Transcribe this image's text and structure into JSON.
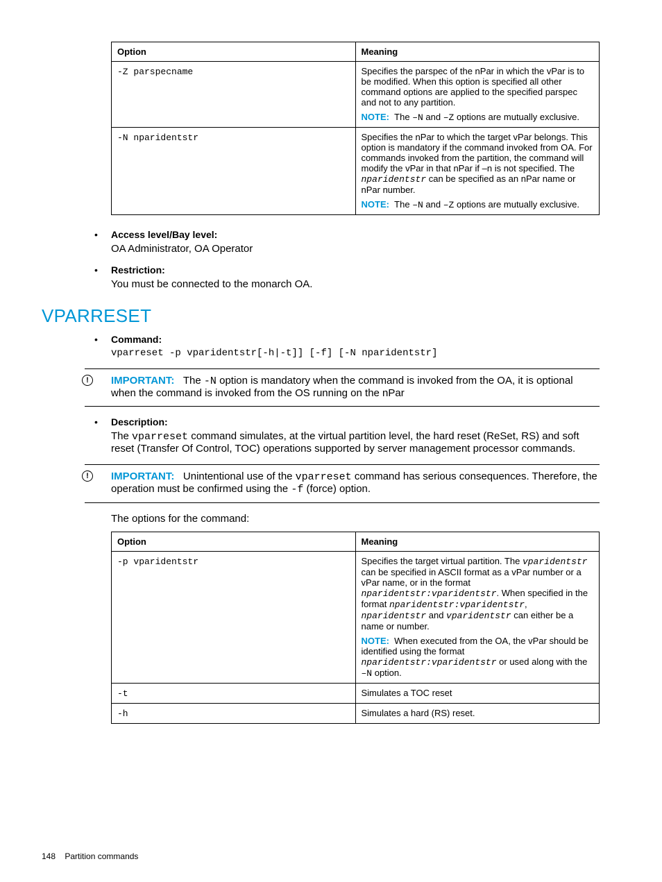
{
  "colors": {
    "accent": "#0096d6",
    "rule": "#000000",
    "text": "#000000",
    "bg": "#ffffff"
  },
  "table1": {
    "headers": {
      "option": "Option",
      "meaning": "Meaning"
    },
    "rows": [
      {
        "option_html": "<span class='mono'>-Z parspecname</span>",
        "meaning_html": "<p class='cell-para'>Specifies the parspec of the nPar in which the vPar is to be modified. When this option is specified all other command options are applied to the specified parspec and not to any partition.</p><p class='cell-para'><span class='note-label'>NOTE:</span>&nbsp;&nbsp;The <span class='mono'>–N</span> and <span class='mono'>–Z</span> options are mutually exclusive.</p>"
      },
      {
        "option_html": "<span class='mono'>-N nparidentstr</span>",
        "meaning_html": "<p class='cell-para'>Specifies the nPar to which the target vPar belongs. This option is mandatory if the command invoked from OA. For commands invoked from the partition, the command will modify the vPar in that nPar if –n is not specified. The <span class='italic-mono'>nparidentstr</span> can be specified as an nPar name or nPar number.</p><p class='cell-para'><span class='note-label'>NOTE:</span>&nbsp;&nbsp;The <span class='mono'>–N</span> and <span class='mono'>–Z</span> options are mutually exclusive.</p>"
      }
    ]
  },
  "list1": {
    "items": [
      {
        "head": "Access level/Bay level:",
        "body_html": "OA Administrator, OA Operator"
      },
      {
        "head": "Restriction:",
        "body_html": "You must be connected to the monarch OA."
      }
    ]
  },
  "heading": "VPARRESET",
  "list2": {
    "items": [
      {
        "head": "Command:",
        "cmd": "vparreset -p  vparidentstr[-h|-t]] [-f] [-N nparidentstr]"
      }
    ]
  },
  "important1_html": "<span class='important-label'>IMPORTANT:</span>&nbsp;&nbsp;&nbsp;The <span class='mono'>-N</span>&nbsp;option is mandatory when the command is invoked from the OA, it is optional when the command is invoked from the OS running on the nPar",
  "list3": {
    "items": [
      {
        "head": "Description:",
        "body_html": "The <span class='mono'>vparreset</span> command simulates, at the virtual partition level, the hard reset (ReSet, RS) and soft reset (Transfer Of Control, TOC) operations supported by server management processor commands."
      }
    ]
  },
  "important2_html": "<span class='important-label'>IMPORTANT:</span>&nbsp;&nbsp;&nbsp;Unintentional use of the <span class='mono'>vparreset</span> command has serious consequences. Therefore, the operation must be confirmed using the <span class='mono'>-f</span>&nbsp;(force) option.",
  "options_intro": "The options for the command:",
  "table2": {
    "headers": {
      "option": "Option",
      "meaning": "Meaning"
    },
    "rows": [
      {
        "option_html": "<span class='mono'>-p vparidentstr</span>",
        "meaning_html": "<p class='cell-para'>Specifies the target virtual partition. The <span class='italic-mono'>vparidentstr</span> can be specified in ASCII format as a vPar number or a vPar name, or in the format <span class='italic-mono'>nparidentstr:vparidentstr</span>. When specified in the format <span class='italic-mono'>nparidentstr:vparidentstr</span>, <span class='italic-mono'>nparidentstr</span> and <span class='italic-mono'>vparidentstr</span> can either be a name or number.</p><p class='cell-para'><span class='note-label'>NOTE:</span>&nbsp;&nbsp;When executed from the OA, the vPar should be identified using the format <span class='italic-mono'>nparidentstr:vparidentstr</span> or used along with the <span class='mono'>–N</span> option.</p>"
      },
      {
        "option_html": "<span class='mono'>-t</span>",
        "meaning_html": "Simulates a TOC reset"
      },
      {
        "option_html": "<span class='mono'>-h</span>",
        "meaning_html": "Simulates a hard (RS) reset."
      }
    ]
  },
  "footer": {
    "page_number": "148",
    "section": "Partition commands"
  }
}
